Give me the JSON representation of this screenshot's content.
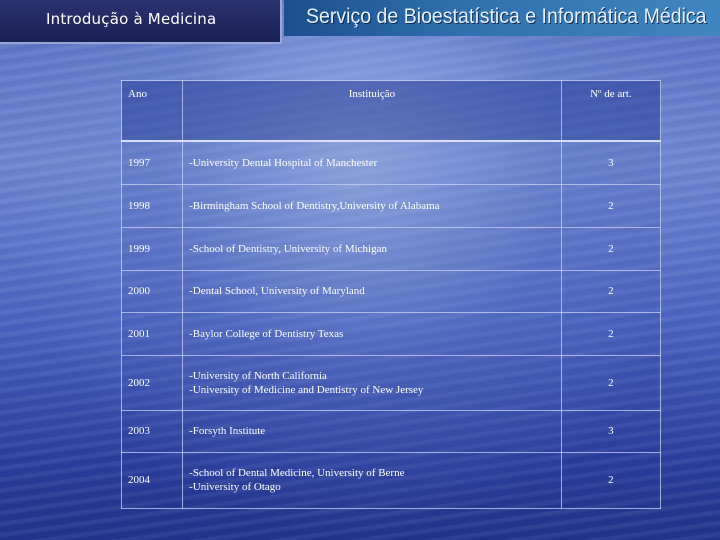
{
  "header": {
    "title": "Introdução à Medicina",
    "banner": "Serviço de Bioestatística e Informática Médica"
  },
  "table": {
    "columns": [
      "Ano",
      "Instituição",
      "Nº de art."
    ],
    "rows": [
      {
        "year": "1997",
        "institutions": [
          "-University Dental Hospital of Manchester"
        ],
        "count": "3"
      },
      {
        "year": "1998",
        "institutions": [
          "-Birmingham School of Dentistry,University of Alabama"
        ],
        "count": "2"
      },
      {
        "year": "1999",
        "institutions": [
          "-School of Dentistry, University of Michigan"
        ],
        "count": "2"
      },
      {
        "year": "2000",
        "institutions": [
          "-Dental School, University of Maryland"
        ],
        "count": "2"
      },
      {
        "year": "2001",
        "institutions": [
          "-Baylor College of Dentistry Texas"
        ],
        "count": "2"
      },
      {
        "year": "2002",
        "institutions": [
          "-University of North California",
          "-University of Medicine and Dentistry of New Jersey"
        ],
        "count": "2"
      },
      {
        "year": "2003",
        "institutions": [
          "-Forsyth Institute"
        ],
        "count": "3"
      },
      {
        "year": "2004",
        "institutions": [
          "-School of Dental Medicine, University of Berne",
          "-University of Otago"
        ],
        "count": "2"
      }
    ]
  }
}
